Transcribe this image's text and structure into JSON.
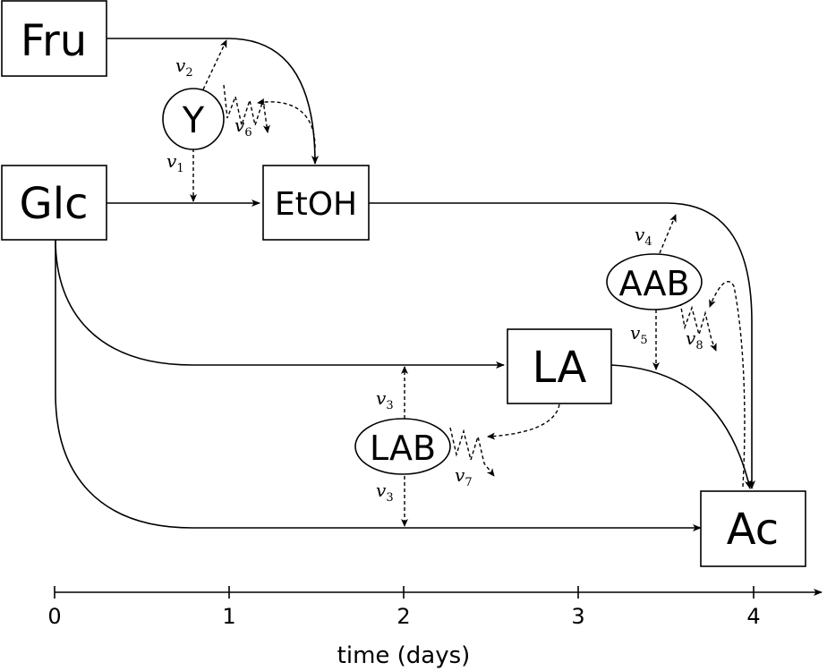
{
  "nodes": {
    "fru": "Fru",
    "glc": "Glc",
    "etoh": "EtOH",
    "la": "LA",
    "ac": "Ac",
    "y": "Y",
    "aab": "AAB",
    "lab": "LAB"
  },
  "rates": {
    "v1": {
      "v": "v",
      "sub": "1"
    },
    "v2": {
      "v": "v",
      "sub": "2"
    },
    "v3a": {
      "v": "v",
      "sub": "3"
    },
    "v3b": {
      "v": "v",
      "sub": "3"
    },
    "v4": {
      "v": "v",
      "sub": "4"
    },
    "v5": {
      "v": "v",
      "sub": "5"
    },
    "v6": {
      "v": "v",
      "sub": "6"
    },
    "v7": {
      "v": "v",
      "sub": "7"
    },
    "v8": {
      "v": "v",
      "sub": "8"
    }
  },
  "axis": {
    "ticks": [
      "0",
      "1",
      "2",
      "3",
      "4"
    ],
    "label": "time (days)"
  }
}
